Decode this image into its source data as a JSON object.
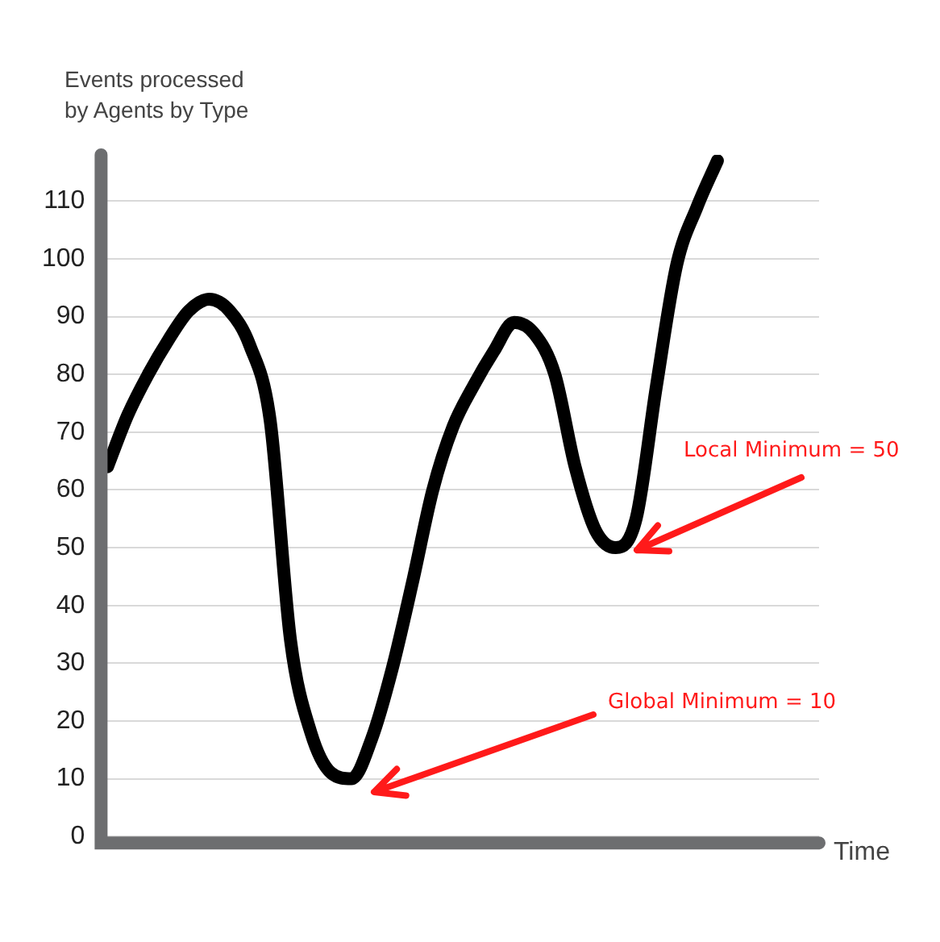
{
  "chart_data": {
    "type": "line",
    "ylabel": "Events processed\nby Agents by Type",
    "xlabel": "Time",
    "categories": [
      null,
      null,
      null,
      null,
      null,
      null,
      null,
      null,
      null,
      null,
      null,
      null,
      null,
      null,
      null,
      null,
      null,
      null,
      null,
      null,
      null,
      null,
      null,
      null,
      null,
      null,
      null,
      null,
      null,
      null,
      null,
      null,
      null,
      null,
      null,
      null
    ],
    "series": [
      {
        "color": "#000000",
        "values": [
          64,
          73,
          80,
          86,
          91,
          93,
          91,
          85,
          72,
          34,
          18,
          11,
          10,
          17,
          29,
          44,
          60,
          71,
          78,
          84,
          89,
          87,
          80,
          64,
          53,
          50,
          55,
          78,
          99,
          109,
          117,
          null,
          null,
          null,
          null,
          null
        ]
      }
    ],
    "ylim": [
      0,
      118
    ],
    "yticks": [
      0,
      10,
      20,
      30,
      40,
      50,
      60,
      70,
      80,
      90,
      100,
      110
    ],
    "grid": "y",
    "legend": false,
    "marker": "none",
    "line_style": "solid",
    "annotations": [
      "Local Minimum = 50",
      "Global Minimum = 10"
    ]
  }
}
